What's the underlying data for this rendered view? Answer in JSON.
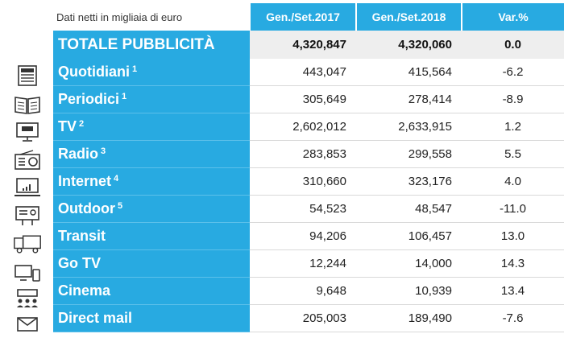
{
  "table": {
    "caption": "Dati netti in migliaia di euro",
    "columns": [
      "Gen./Set.2017",
      "Gen./Set.2018",
      "Var.%"
    ],
    "total": {
      "label": "TOTALE PUBBLICITÀ",
      "v2017": "4,320,847",
      "v2018": "4,320,060",
      "var": "0.0"
    },
    "rows": [
      {
        "label": "Quotidiani",
        "note": "1",
        "icon": "newspaper-icon",
        "v2017": "443,047",
        "v2018": "415,564",
        "var": "-6.2"
      },
      {
        "label": "Periodici",
        "note": "1",
        "icon": "magazine-icon",
        "v2017": "305,649",
        "v2018": "278,414",
        "var": "-8.9"
      },
      {
        "label": "TV",
        "note": "2",
        "icon": "tv-icon",
        "v2017": "2,602,012",
        "v2018": "2,633,915",
        "var": "1.2"
      },
      {
        "label": "Radio",
        "note": "3",
        "icon": "radio-icon",
        "v2017": "283,853",
        "v2018": "299,558",
        "var": "5.5"
      },
      {
        "label": "Internet",
        "note": "4",
        "icon": "computer-monitor-icon",
        "v2017": "310,660",
        "v2018": "323,176",
        "var": "4.0"
      },
      {
        "label": "Outdoor",
        "note": "5",
        "icon": "billboard-icon",
        "v2017": "54,523",
        "v2018": "48,547",
        "var": "-11.0"
      },
      {
        "label": "Transit",
        "note": "",
        "icon": "truck-icon",
        "v2017": "94,206",
        "v2018": "106,457",
        "var": "13.0"
      },
      {
        "label": "Go TV",
        "note": "",
        "icon": "screens-icon",
        "v2017": "12,244",
        "v2018": "14,000",
        "var": "14.3"
      },
      {
        "label": "Cinema",
        "note": "",
        "icon": "cinema-audience-icon",
        "v2017": "9,648",
        "v2018": "10,939",
        "var": "13.4"
      },
      {
        "label": "Direct mail",
        "note": "",
        "icon": "mail-icon",
        "v2017": "205,003",
        "v2018": "189,490",
        "var": "-7.6"
      }
    ]
  }
}
